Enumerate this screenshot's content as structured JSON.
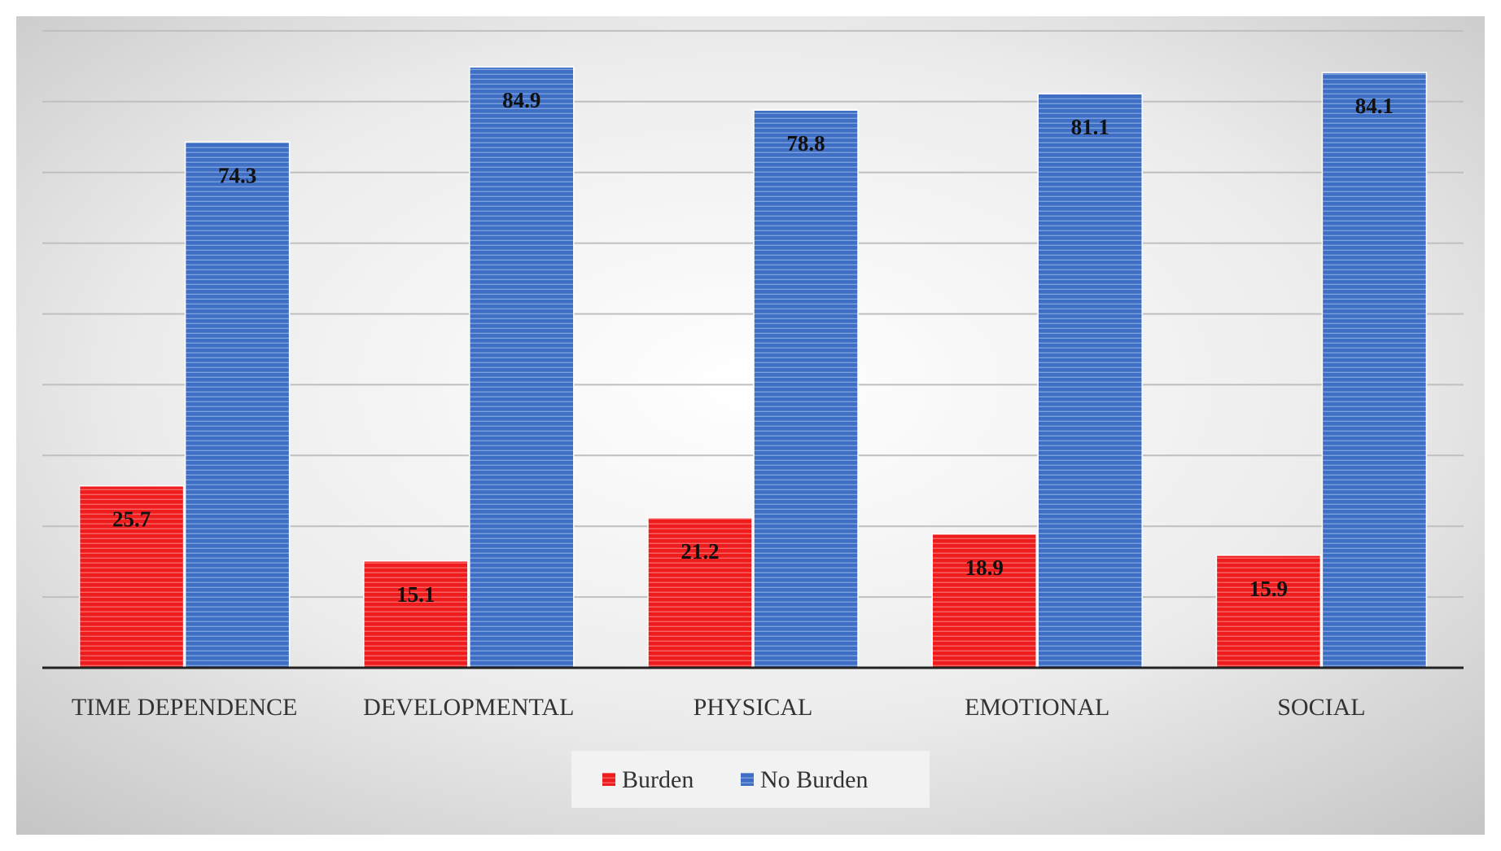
{
  "chart_data": {
    "type": "bar",
    "title": "",
    "xlabel": "",
    "ylabel": "",
    "categories": [
      "TIME DEPENDENCE",
      "DEVELOPMENTAL",
      "PHYSICAL",
      "EMOTIONAL",
      "SOCIAL"
    ],
    "series": [
      {
        "name": "Burden",
        "values": [
          25.7,
          15.1,
          21.2,
          18.9,
          15.9
        ],
        "color": "#ee1c1c"
      },
      {
        "name": "No Burden",
        "values": [
          74.3,
          84.9,
          78.8,
          81.1,
          84.1
        ],
        "color": "#3f6fc4"
      }
    ],
    "ylim": [
      0,
      90
    ],
    "gridline_step": 10,
    "grid": true,
    "y_axis_labels_shown": false,
    "data_labels": true,
    "legend_position": "bottom",
    "colors": {
      "burden": "#ee1c1c",
      "no_burden": "#3f6fc4",
      "background_center": "#ffffff",
      "background_edge": "#c4c4c4",
      "gridline": "#bfbfbf",
      "axis": "#222222"
    }
  }
}
